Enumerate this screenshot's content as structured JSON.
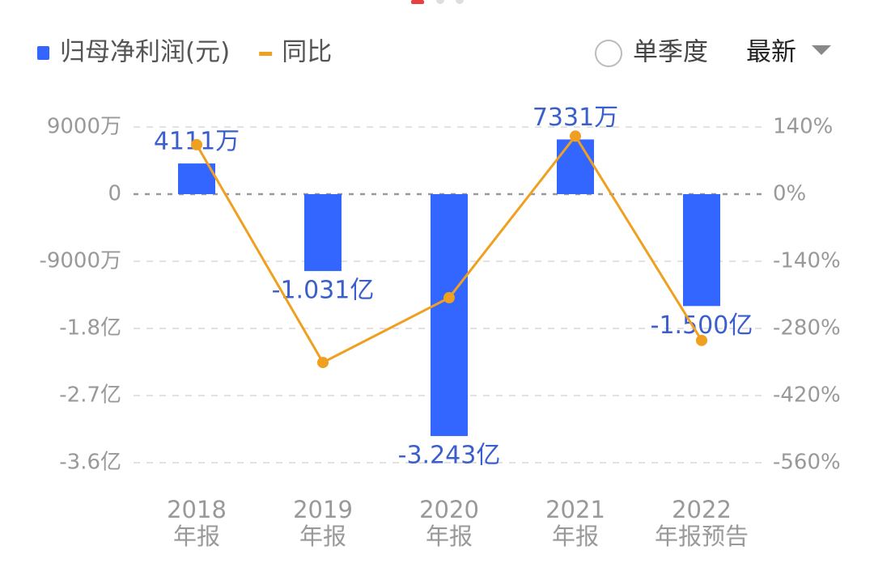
{
  "chart_data": {
    "type": "bar",
    "legend_position": "top-left",
    "categories": [
      [
        "2018",
        "年报"
      ],
      [
        "2019",
        "年报"
      ],
      [
        "2020",
        "年报"
      ],
      [
        "2021",
        "年报"
      ],
      [
        "2022",
        "年报预告"
      ]
    ],
    "series": [
      {
        "name": "归母净利润(元)",
        "color": "#3366ff",
        "type": "bar",
        "values": [
          41110000,
          -103100000,
          -324300000,
          73310000,
          -150000000
        ],
        "value_labels": [
          "4111万",
          "-1.031亿",
          "-3.243亿",
          "7331万",
          "-1.500亿"
        ]
      },
      {
        "name": "同比",
        "color": "#f0a020",
        "type": "line",
        "axis": "y2",
        "values": [
          103,
          -351,
          -216,
          121,
          -305
        ]
      }
    ],
    "ylim": [
      -360000000,
      90000000
    ],
    "yticks": [
      {
        "value": 90000000,
        "label": "9000万"
      },
      0,
      {
        "value": -90000000,
        "label": "-9000万"
      },
      {
        "value": -180000000,
        "label": "-1.8亿"
      },
      {
        "value": -270000000,
        "label": "-2.7亿"
      },
      {
        "value": -360000000,
        "label": "-3.6亿"
      }
    ],
    "y2lim": [
      -560,
      140
    ],
    "y2ticks": [
      {
        "value": 140,
        "label": "140%"
      },
      {
        "value": 0,
        "label": "0%"
      },
      {
        "value": -140,
        "label": "-140%"
      },
      {
        "value": -280,
        "label": "-280%"
      },
      {
        "value": -420,
        "label": "-420%"
      },
      {
        "value": -560,
        "label": "-560%"
      }
    ],
    "grid": true
  },
  "controls": {
    "single_quarter": "单季度",
    "period": "最新"
  }
}
